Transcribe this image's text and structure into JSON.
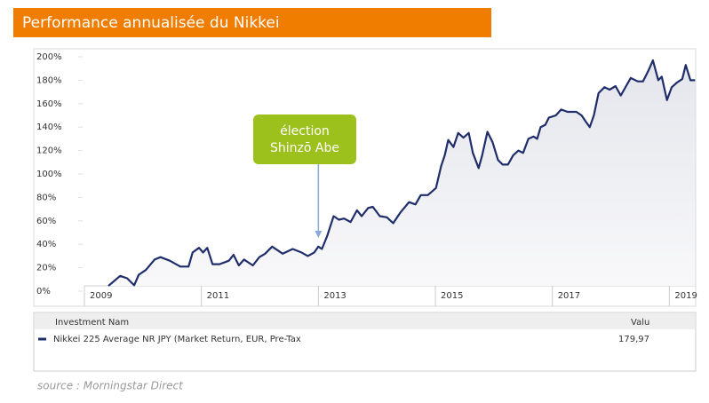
{
  "chart_data": {
    "type": "line",
    "title": "Performance annualisée du Nikkei",
    "annotation": [
      "élection",
      "Shinzō Abe"
    ],
    "x": [
      2009.41,
      2009.61,
      2009.73,
      2009.85,
      2009.93,
      2010.05,
      2010.2,
      2010.3,
      2010.46,
      2010.64,
      2010.78,
      2010.85,
      2010.96,
      2011.03,
      2011.1,
      2011.19,
      2011.31,
      2011.47,
      2011.55,
      2011.64,
      2011.73,
      2011.88,
      2011.99,
      2012.09,
      2012.21,
      2012.39,
      2012.56,
      2012.71,
      2012.82,
      2012.93,
      2013.0,
      2013.06,
      2013.15,
      2013.26,
      2013.35,
      2013.44,
      2013.55,
      2013.66,
      2013.74,
      2013.85,
      2013.93,
      2014.05,
      2014.17,
      2014.28,
      2014.4,
      2014.55,
      2014.66,
      2014.75,
      2014.87,
      2015.01,
      2015.1,
      2015.16,
      2015.22,
      2015.31,
      2015.39,
      2015.48,
      2015.57,
      2015.64,
      2015.74,
      2015.8,
      2015.89,
      2015.98,
      2016.07,
      2016.15,
      2016.24,
      2016.33,
      2016.42,
      2016.5,
      2016.59,
      2016.68,
      2016.74,
      2016.8,
      2016.88,
      2016.94,
      2017.06,
      2017.15,
      2017.26,
      2017.41,
      2017.5,
      2017.58,
      2017.64,
      2017.71,
      2017.79,
      2017.89,
      2017.98,
      2018.08,
      2018.17,
      2018.26,
      2018.34,
      2018.46,
      2018.55,
      2018.64,
      2018.72,
      2018.81,
      2018.87,
      2018.96,
      2019.04,
      2019.13,
      2019.22,
      2019.28,
      2019.36,
      2019.44
    ],
    "series": [
      {
        "name": "Nikkei 225 Average NR JPY (Market Return, EUR, Pre-Tax",
        "color": "#1f2d6b",
        "values": [
          4.5,
          13,
          11,
          5,
          14,
          18,
          27,
          29,
          26,
          21,
          21,
          33,
          37,
          33,
          37,
          23,
          23,
          26,
          31,
          22,
          27,
          22,
          29,
          32,
          38,
          32,
          36,
          33,
          30,
          33,
          38,
          36,
          47,
          64,
          61,
          62,
          59,
          69,
          64,
          71,
          72,
          64,
          63,
          58,
          67,
          76,
          74,
          82,
          82,
          88,
          107,
          116,
          129,
          123,
          135,
          131,
          135,
          118,
          105,
          116,
          136,
          127,
          112,
          108,
          108,
          116,
          120,
          118,
          130,
          132,
          130,
          140,
          142,
          148,
          150,
          155,
          153,
          153,
          150,
          144,
          140,
          150,
          169,
          174,
          172,
          175,
          167,
          175,
          182,
          179,
          179,
          188,
          197,
          180,
          183,
          163,
          174,
          178,
          181,
          193,
          180,
          179.97
        ]
      }
    ],
    "xlim": [
      2009,
      2019.45
    ],
    "xticks": [
      2009,
      2011,
      2013,
      2015,
      2017,
      2019
    ],
    "ylim": [
      0,
      200
    ],
    "yticks": [
      {
        "value": 0,
        "label": "0%"
      },
      {
        "value": 20,
        "label": "20%"
      },
      {
        "value": 40,
        "label": "40%"
      },
      {
        "value": 60,
        "label": "60%"
      },
      {
        "value": 80,
        "label": "80%"
      },
      {
        "value": 100,
        "label": "100%"
      },
      {
        "value": 120,
        "label": "120%"
      },
      {
        "value": 140,
        "label": "140%"
      },
      {
        "value": 160,
        "label": "160%"
      },
      {
        "value": 180,
        "label": "180%"
      },
      {
        "value": 200,
        "label": "200%"
      }
    ],
    "grid": false
  },
  "table": {
    "headers": [
      "Investment Nam",
      "Valu"
    ],
    "rows": [
      [
        "Nikkei 225 Average NR JPY (Market Return, EUR, Pre-Tax",
        "179,97"
      ]
    ]
  },
  "source": "source : Morningstar Direct"
}
